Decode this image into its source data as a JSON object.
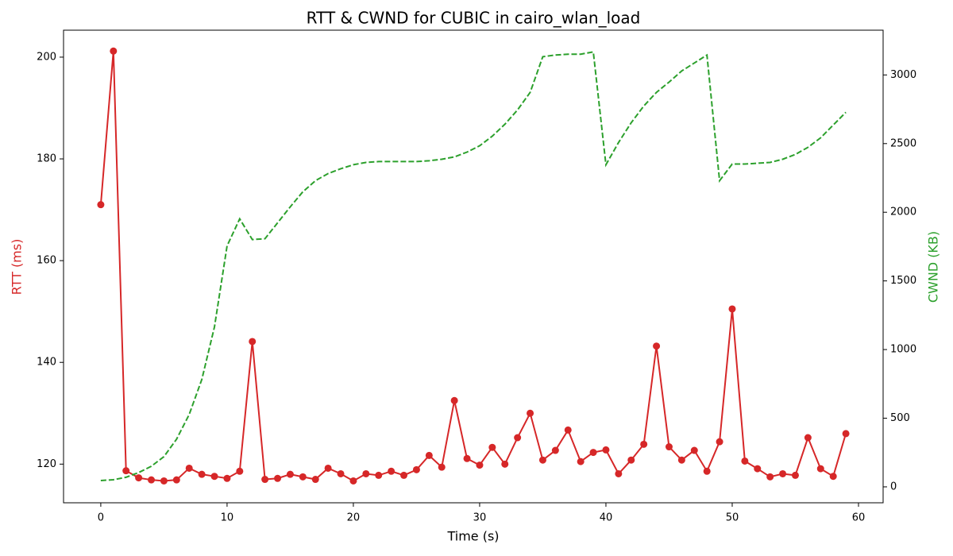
{
  "chart_data": {
    "type": "line",
    "title": "RTT & CWND for CUBIC in cairo_wlan_load",
    "xlabel": "Time (s)",
    "ylabel": "RTT (ms)",
    "y2label": "CWND (KB)",
    "x": [
      0,
      1,
      2,
      3,
      4,
      5,
      6,
      7,
      8,
      9,
      10,
      11,
      12,
      13,
      14,
      15,
      16,
      17,
      18,
      19,
      20,
      21,
      22,
      23,
      24,
      25,
      26,
      27,
      28,
      29,
      30,
      31,
      32,
      33,
      34,
      35,
      36,
      37,
      38,
      39,
      40,
      41,
      42,
      43,
      44,
      45,
      46,
      47,
      48,
      49,
      50,
      51,
      52,
      53,
      54,
      55,
      56,
      57,
      58,
      59
    ],
    "series": [
      {
        "name": "RTT (ms)",
        "color": "#d62728",
        "linestyle": "solid",
        "marker": "o",
        "axis": "y",
        "values": [
          171.0,
          201.2,
          118.7,
          117.3,
          116.9,
          116.7,
          116.9,
          119.2,
          118.0,
          117.6,
          117.2,
          118.6,
          144.1,
          117.0,
          117.2,
          118.0,
          117.5,
          117.0,
          119.2,
          118.1,
          116.7,
          118.1,
          117.8,
          118.6,
          117.8,
          118.9,
          121.7,
          119.4,
          132.5,
          121.1,
          119.8,
          123.3,
          120.0,
          125.2,
          130.0,
          120.8,
          122.7,
          126.7,
          120.5,
          122.3,
          122.8,
          118.1,
          120.8,
          123.9,
          143.2,
          123.4,
          120.8,
          122.7,
          118.6,
          124.4,
          150.5,
          120.6,
          119.1,
          117.5,
          118.1,
          117.8,
          125.2,
          119.1,
          117.6,
          126.0
        ]
      },
      {
        "name": "CWND (KB)",
        "color": "#2ca02c",
        "linestyle": "dashed",
        "marker": null,
        "axis": "y2",
        "values": [
          46,
          52,
          70,
          104,
          150,
          220,
          347,
          527,
          782,
          1164,
          1755,
          1952,
          1801,
          1807,
          1923,
          2039,
          2149,
          2230,
          2282,
          2317,
          2346,
          2363,
          2369,
          2369,
          2369,
          2369,
          2375,
          2386,
          2403,
          2438,
          2484,
          2554,
          2641,
          2745,
          2873,
          3133,
          3145,
          3151,
          3151,
          3168,
          2346,
          2508,
          2652,
          2774,
          2873,
          2948,
          3029,
          3087,
          3145,
          2230,
          2351,
          2351,
          2357,
          2363,
          2386,
          2421,
          2473,
          2542,
          2635,
          2728
        ]
      }
    ],
    "xlim": [
      -2.95,
      61.95
    ],
    "xticks": [
      0,
      10,
      20,
      30,
      40,
      50,
      60
    ],
    "ylim": [
      112.4,
      205.3
    ],
    "yticks": [
      120,
      140,
      160,
      180,
      200
    ],
    "y2lim": [
      -116,
      3326
    ],
    "y2ticks": [
      0,
      500,
      1000,
      1500,
      2000,
      2500,
      3000
    ],
    "grid": false
  }
}
